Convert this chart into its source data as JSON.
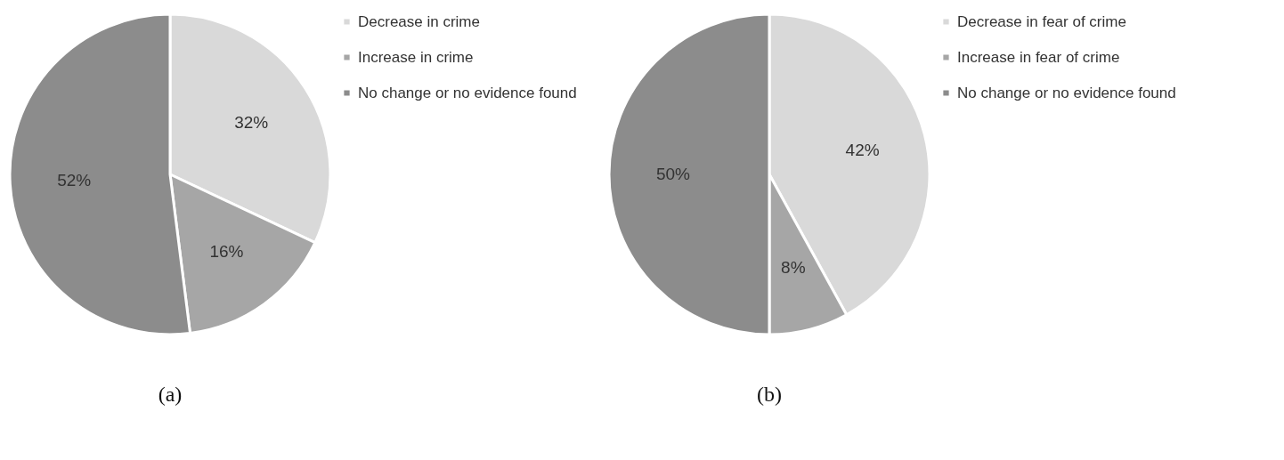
{
  "chart_data": [
    {
      "type": "pie",
      "title": "(a)",
      "categories": [
        "Decrease in crime",
        "Increase in crime",
        "No change or no evidence found"
      ],
      "values": [
        32,
        16,
        52
      ],
      "value_labels": [
        "32%",
        "16%",
        "52%"
      ],
      "colors": [
        "#d9d9d9",
        "#a6a6a6",
        "#8c8c8c"
      ],
      "legend": "right"
    },
    {
      "type": "pie",
      "title": "(b)",
      "categories": [
        "Decrease in fear of crime",
        "Increase in fear of crime",
        "No change or no evidence found"
      ],
      "values": [
        42,
        8,
        50
      ],
      "value_labels": [
        "42%",
        "8%",
        "50%"
      ],
      "colors": [
        "#d9d9d9",
        "#a6a6a6",
        "#8c8c8c"
      ],
      "legend": "right"
    }
  ]
}
